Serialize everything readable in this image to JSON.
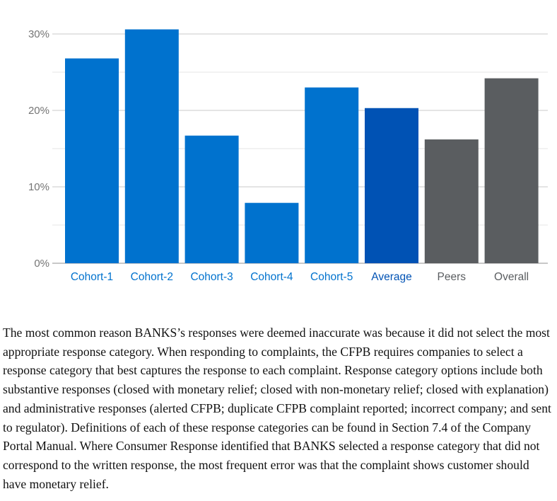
{
  "chart_data": {
    "type": "bar",
    "categories": [
      "Cohort-1",
      "Cohort-2",
      "Cohort-3",
      "Cohort-4",
      "Cohort-5",
      "Average",
      "Peers",
      "Overall"
    ],
    "values": [
      26.8,
      30.6,
      16.7,
      7.9,
      23.0,
      20.3,
      16.2,
      24.2
    ],
    "bar_colors": [
      "#0072ce",
      "#0072ce",
      "#0072ce",
      "#0072ce",
      "#0072ce",
      "#0052b4",
      "#5a5d60",
      "#5a5d60"
    ],
    "label_colors": [
      "#0072ce",
      "#0072ce",
      "#0072ce",
      "#0072ce",
      "#0072ce",
      "#0052b4",
      "#5a5d60",
      "#5a5d60"
    ],
    "ylim": [
      0,
      30
    ],
    "yticks": [
      0,
      10,
      20,
      30
    ],
    "ytick_labels": [
      "0%",
      "10%",
      "20%",
      "30%"
    ],
    "minor_gridlines": [
      5,
      15,
      25
    ],
    "grid": true,
    "title": "",
    "xlabel": "",
    "ylabel": "",
    "legend": "none"
  },
  "body_text": "The most common reason BANKS’s responses were deemed inaccurate was because it did not select the most appropriate response category. When responding to complaints, the CFPB requires companies to select a response category that best captures the response to each complaint. Response category options include both substantive responses (closed with monetary relief; closed with non-monetary relief; closed with explanation) and administrative responses (alerted CFPB; duplicate CFPB complaint reported; incorrect company; and sent to regulator). Definitions of each of these response categories can be found in Section 7.4 of the Company Portal Manual. Where Consumer Response identified that BANKS selected a response category that did not correspond to the written response, the most frequent error was that the complaint shows customer should have monetary relief."
}
